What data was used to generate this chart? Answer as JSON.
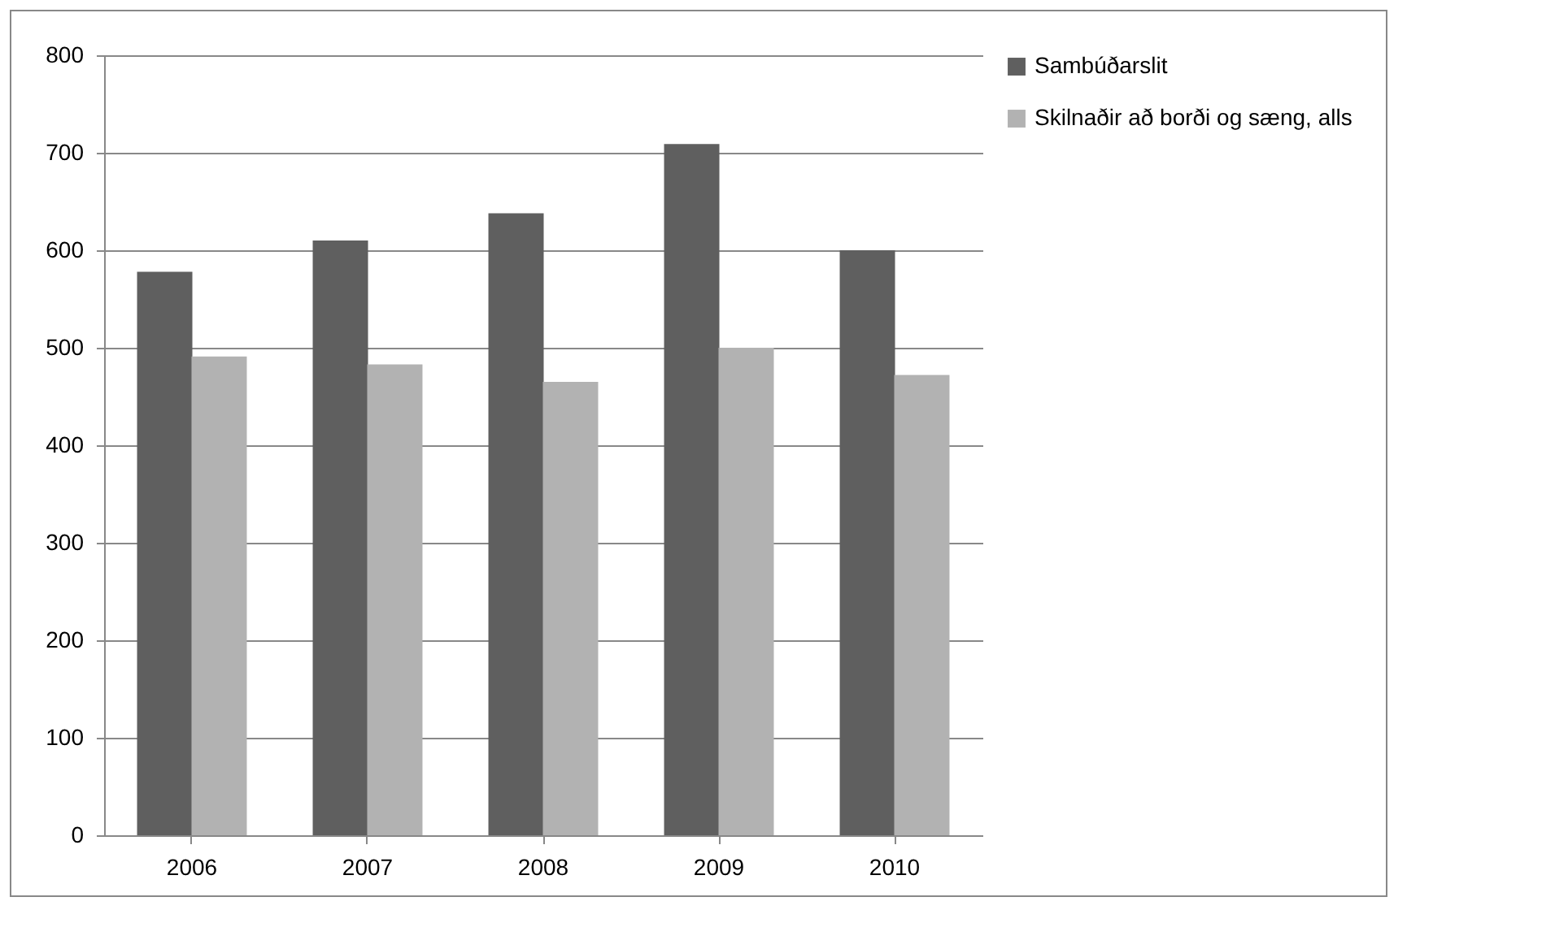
{
  "chart_data": {
    "type": "bar",
    "categories": [
      "2006",
      "2007",
      "2008",
      "2009",
      "2010"
    ],
    "series": [
      {
        "name": "Sambúðarslit",
        "color": "#5f5f5f",
        "values": [
          578,
          610,
          638,
          709,
          600
        ]
      },
      {
        "name": "Skilnaðir að borði og sæng, alls",
        "color": "#b2b2b2",
        "values": [
          491,
          483,
          465,
          500,
          472
        ]
      }
    ],
    "ylim": [
      0,
      800
    ],
    "yticks": [
      0,
      100,
      200,
      300,
      400,
      500,
      600,
      700,
      800
    ],
    "grid": "y",
    "legend": "right"
  }
}
